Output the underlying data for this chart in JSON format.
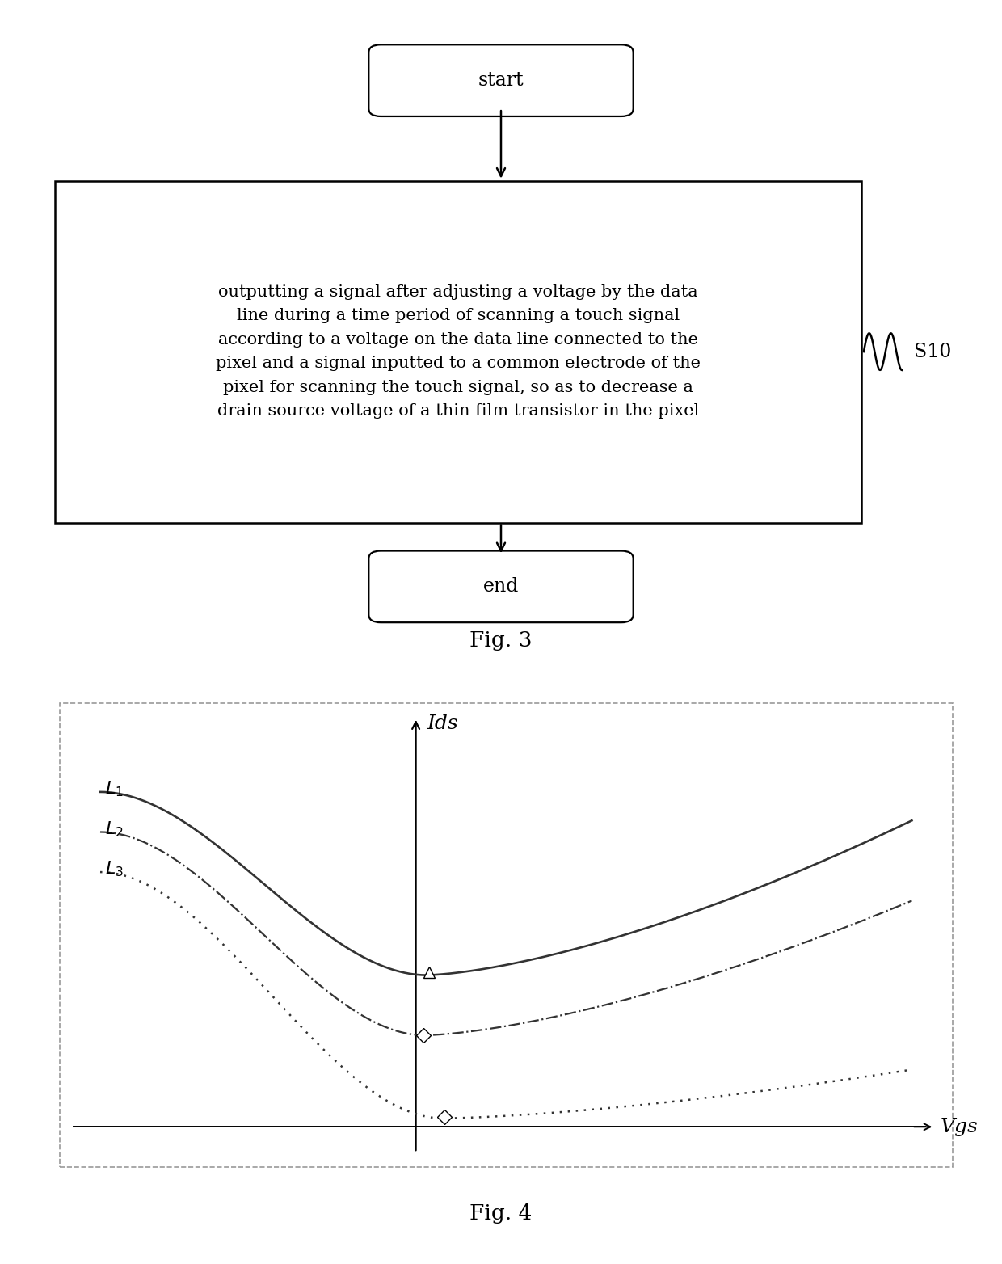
{
  "fig3_title": "Fig. 3",
  "fig4_title": "Fig. 4",
  "flowchart": {
    "start_text": "start",
    "end_text": "end",
    "step_text": "outputting a signal after adjusting a voltage by the data\nline during a time period of scanning a touch signal\naccording to a voltage on the data line connected to the\npixel and a signal inputted to a common electrode of the\npixel for scanning the touch signal, so as to decrease a\ndrain source voltage of a thin film transistor in the pixel",
    "label_text": "S10"
  },
  "graph": {
    "ylabel": "Ids",
    "xlabel": "Vgs",
    "line_color": "#333333",
    "border_color": "#999999"
  }
}
